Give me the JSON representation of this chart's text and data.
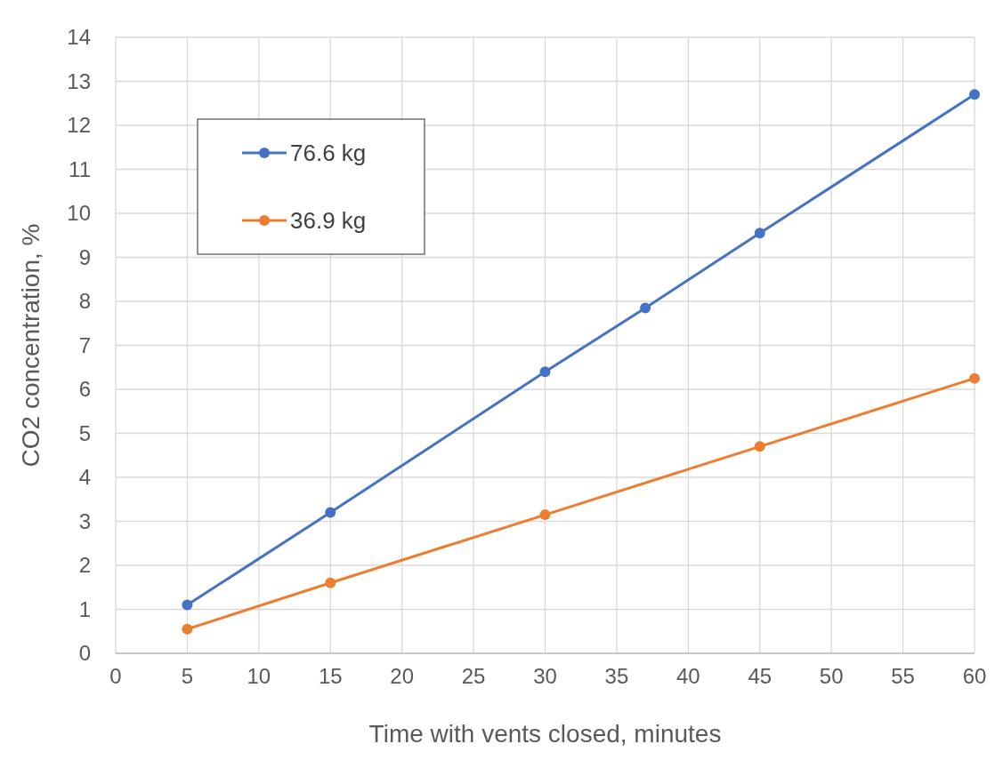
{
  "chart_data": {
    "type": "line",
    "xlabel": "Time with vents closed, minutes",
    "ylabel": "CO2 concentration, %",
    "xlim": [
      0,
      60
    ],
    "xticks": [
      0,
      5,
      10,
      15,
      20,
      25,
      30,
      35,
      40,
      45,
      50,
      55,
      60
    ],
    "ylim": [
      0,
      14
    ],
    "yticks": [
      0,
      1,
      2,
      3,
      4,
      5,
      6,
      7,
      8,
      9,
      10,
      11,
      12,
      13,
      14
    ],
    "grid": true,
    "legend": "top left",
    "marker": "circle",
    "line_style": "solid",
    "series": [
      {
        "name": "76.6 kg",
        "color": "#4472c4",
        "x": [
          5,
          15,
          30,
          37,
          45,
          60
        ],
        "values": [
          1.1,
          3.2,
          6.4,
          7.85,
          9.55,
          12.7
        ]
      },
      {
        "name": "36.9 kg",
        "color": "#ed7d31",
        "x": [
          5,
          15,
          30,
          45,
          60
        ],
        "values": [
          0.55,
          1.6,
          3.15,
          4.7,
          6.25
        ]
      }
    ]
  }
}
